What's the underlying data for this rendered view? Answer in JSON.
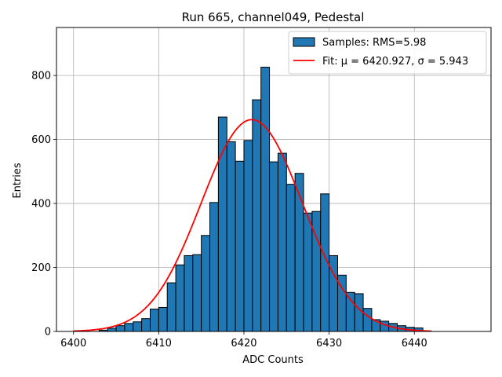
{
  "chart_data": {
    "type": "bar",
    "title": "Run 665, channel049, Pedestal",
    "xlabel": "ADC Counts",
    "ylabel": "Entries",
    "xlim": [
      6398,
      6449
    ],
    "ylim": [
      0,
      950
    ],
    "xticks": [
      6400,
      6410,
      6420,
      6430,
      6440
    ],
    "yticks": [
      0,
      200,
      400,
      600,
      800
    ],
    "grid": true,
    "legend_position": "top-right",
    "bin_width": 1,
    "colors": {
      "bars": "#1f77b4",
      "bar_edge": "#000000",
      "fit": "#ff0000"
    },
    "series": [
      {
        "name": "Samples: RMS=5.98",
        "bin_edges_start": 6403,
        "values": [
          4,
          10,
          18,
          25,
          30,
          40,
          70,
          75,
          152,
          208,
          237,
          240,
          300,
          403,
          670,
          593,
          532,
          597,
          724,
          826,
          530,
          557,
          460,
          494,
          370,
          375,
          430,
          237,
          176,
          122,
          118,
          72,
          37,
          32,
          25,
          18,
          13,
          11
        ]
      },
      {
        "name": "Fit: μ = 6420.927, σ = 5.943",
        "type": "gaussian",
        "mu": 6420.927,
        "sigma": 5.943,
        "amplitude": 662,
        "x_range": [
          6400,
          6442
        ]
      }
    ]
  }
}
